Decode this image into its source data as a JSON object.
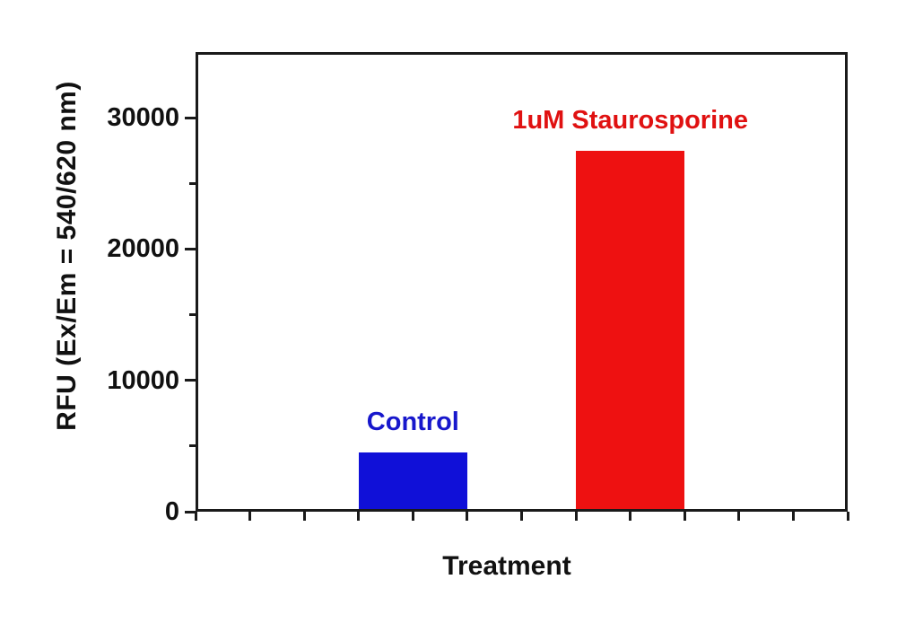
{
  "chart_data": {
    "type": "bar",
    "title": "",
    "xlabel": "Treatment",
    "ylabel": "RFU (Ex/Em = 540/620 nm)",
    "categories": [
      "Control",
      "1uM Staurosporine"
    ],
    "values": [
      4500,
      27500
    ],
    "series": [
      {
        "name": "Control",
        "value": 4500,
        "color": "#1010d8"
      },
      {
        "name": "1uM Staurosporine",
        "value": 27500,
        "color": "#ee1111"
      }
    ],
    "bar_colors": [
      "#1010d8",
      "#ee1111"
    ],
    "label_colors": [
      "#1717cc",
      "#e01111"
    ],
    "ylim": [
      0,
      35000
    ],
    "yticks_major": [
      0,
      10000,
      20000,
      30000
    ],
    "yticks_minor": [
      5000,
      15000,
      25000
    ],
    "x_minor_divisions": 12,
    "bar_center_fractions": [
      0.33333,
      0.66667
    ],
    "bar_width_fraction": 0.16667,
    "grid": false,
    "legend": "none",
    "frame_color": "#1a1a1a",
    "text_color": "#111111",
    "background_color": "#ffffff"
  }
}
